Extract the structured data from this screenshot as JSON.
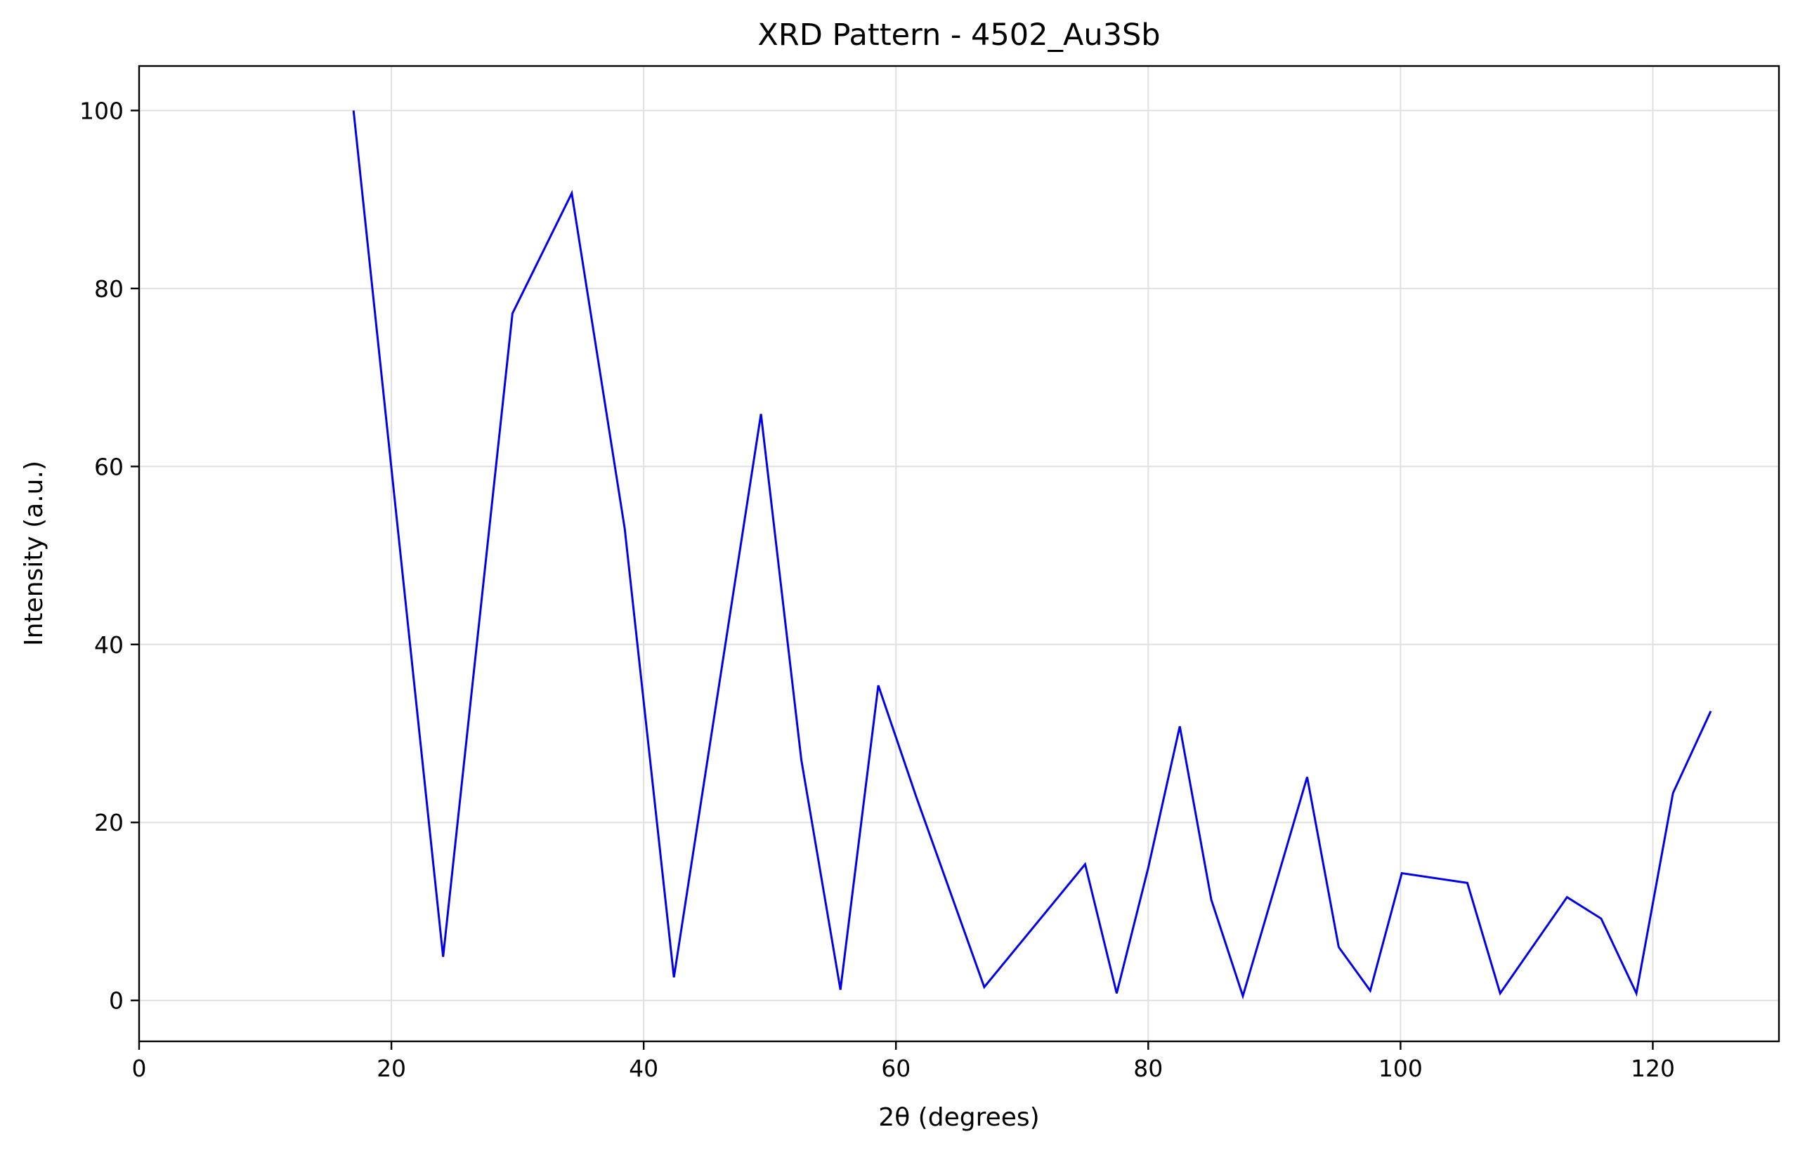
{
  "chart_data": {
    "type": "line",
    "title": "XRD Pattern - 4502_Au3Sb",
    "xlabel": "2θ (degrees)",
    "ylabel": "Intensity (a.u.)",
    "xlim": [
      0,
      130
    ],
    "ylim": [
      -4.6,
      105
    ],
    "xticks": [
      0,
      20,
      40,
      60,
      80,
      100,
      120
    ],
    "yticks": [
      0,
      20,
      40,
      60,
      80,
      100
    ],
    "grid": true,
    "line_color": "#0000ee",
    "series": [
      {
        "x": [
          17.0,
          24.1,
          29.6,
          34.3,
          38.5,
          42.4,
          49.3,
          52.5,
          55.6,
          58.6,
          61.6,
          67.0,
          75.0,
          77.5,
          80.0,
          82.5,
          85.0,
          87.5,
          92.6,
          95.1,
          97.6,
          100.1,
          105.3,
          107.9,
          113.2,
          115.9,
          118.7,
          121.6,
          124.6
        ],
        "values": [
          100.0,
          4.9,
          77.2,
          90.7,
          53.0,
          2.6,
          65.9,
          27.0,
          1.2,
          35.4,
          22.9,
          1.5,
          15.3,
          0.8,
          14.9,
          30.8,
          11.3,
          0.5,
          25.1,
          6.0,
          1.1,
          14.3,
          13.2,
          0.8,
          11.6,
          9.2,
          0.8,
          23.3,
          32.5
        ]
      }
    ]
  }
}
